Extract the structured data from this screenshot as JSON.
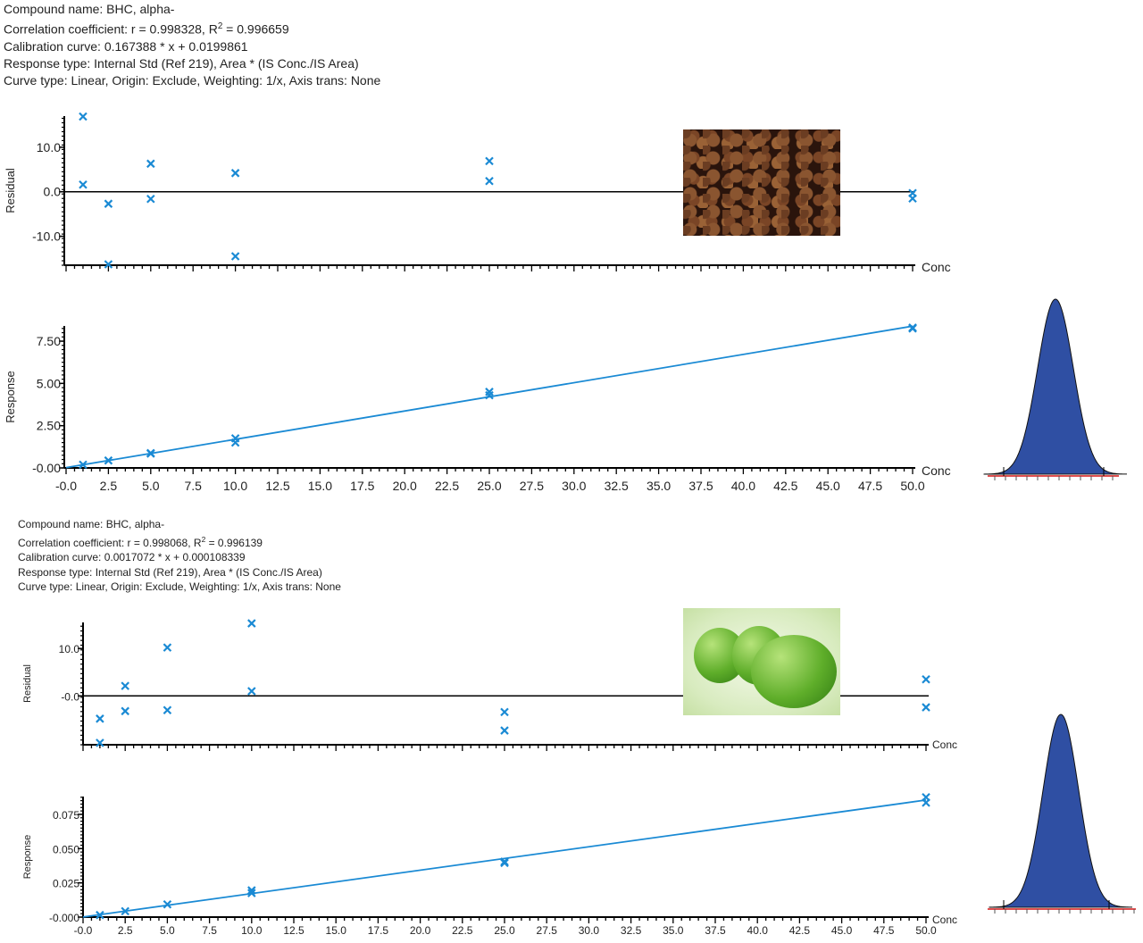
{
  "blocks": [
    {
      "compound": "Compound name: BHC, alpha-",
      "corr": "Correlation coefficient: r = 0.998328, R",
      "corr_sup": "2",
      "corr_val": " = 0.996659",
      "calib": "Calibration curve: 0.167388 * x + 0.0199861",
      "response": "Response type: Internal Std (Ref 219), Area * (IS Conc./IS Area)",
      "curve": "Curve type: Linear, Origin: Exclude, Weighting: 1/x, Axis trans: None"
    },
    {
      "compound": "Compound name: BHC, alpha-",
      "corr": "Correlation coefficient: r = 0.998068, R",
      "corr_sup": "2",
      "corr_val": " = 0.996139",
      "calib": "Calibration curve: 0.0017072 * x + 0.000108339",
      "response": "Response type: Internal Std (Ref 219), Area * (IS Conc./IS Area)",
      "curve": "Curve type: Linear, Origin: Exclude, Weighting: 1/x, Axis trans: None"
    }
  ],
  "colors": {
    "marker": "#1a8ad4",
    "fit": "#1a8ad4",
    "peak": "#2f4fa3",
    "axis": "#000000"
  },
  "chart_data": [
    {
      "type": "scatter",
      "ylabel": "Residual",
      "xlabel": "Conc",
      "xlim": [
        0,
        50
      ],
      "ylim": [
        -16.5,
        17
      ],
      "yticks": [
        10,
        0,
        -10
      ],
      "ytick_labels": [
        "10.0",
        "0.0",
        "-10.0"
      ],
      "x": [
        1,
        1,
        2.5,
        2.5,
        5,
        5,
        10,
        10,
        25,
        25,
        50,
        50
      ],
      "y": [
        16.9,
        1.6,
        -2.7,
        -16.3,
        6.3,
        -1.6,
        4.2,
        -14.5,
        6.9,
        2.4,
        -0.3,
        -1.5
      ]
    },
    {
      "type": "line",
      "ylabel": "Response",
      "xlabel": "Conc",
      "xlim": [
        0,
        50
      ],
      "ylim": [
        0,
        8.4
      ],
      "yticks": [
        7.5,
        5,
        2.5,
        0
      ],
      "ytick_labels": [
        "7.50",
        "5.00",
        "2.50",
        "-0.00"
      ],
      "xticks": [
        "-0.0",
        "2.5",
        "5.0",
        "7.5",
        "10.0",
        "12.5",
        "15.0",
        "17.5",
        "20.0",
        "22.5",
        "25.0",
        "27.5",
        "30.0",
        "32.5",
        "35.0",
        "37.5",
        "40.0",
        "42.5",
        "45.0",
        "47.5",
        "50.0"
      ],
      "fit": {
        "slope": 0.167388,
        "intercept": 0.0199861
      },
      "x": [
        1,
        2.5,
        5,
        5,
        10,
        10,
        25,
        25,
        50,
        50
      ],
      "y": [
        0.19,
        0.44,
        0.88,
        0.85,
        1.75,
        1.5,
        4.5,
        4.3,
        8.3,
        8.25
      ]
    },
    {
      "type": "scatter",
      "ylabel": "Residual",
      "xlabel": "Conc",
      "xlim": [
        0,
        50
      ],
      "ylim": [
        -10.3,
        15.5
      ],
      "yticks": [
        10,
        0
      ],
      "ytick_labels": [
        "10.0",
        "-0.0"
      ],
      "x": [
        1,
        1,
        2.5,
        2.5,
        5,
        5,
        10,
        10,
        25,
        25,
        50,
        50
      ],
      "y": [
        -4.8,
        -9.9,
        2.1,
        -3.2,
        10.2,
        -3,
        15.3,
        1,
        -3.4,
        -7.3,
        3.5,
        -2.4
      ]
    },
    {
      "type": "line",
      "ylabel": "Response",
      "xlabel": "Conc",
      "xlim": [
        0,
        50
      ],
      "ylim": [
        0,
        0.088
      ],
      "yticks": [
        0.075,
        0.05,
        0.025,
        0
      ],
      "ytick_labels": [
        "0.075",
        "0.050",
        "0.025",
        "-0.000"
      ],
      "xticks": [
        "-0.0",
        "2.5",
        "5.0",
        "7.5",
        "10.0",
        "12.5",
        "15.0",
        "17.5",
        "20.0",
        "22.5",
        "25.0",
        "27.5",
        "30.0",
        "32.5",
        "35.0",
        "37.5",
        "40.0",
        "42.5",
        "45.0",
        "47.5",
        "50.0"
      ],
      "fit": {
        "slope": 0.0017072,
        "intercept": 0.000108339
      },
      "x": [
        1,
        2.5,
        5,
        10,
        10,
        25,
        25,
        50,
        50
      ],
      "y": [
        0.0015,
        0.0043,
        0.0093,
        0.0195,
        0.0175,
        0.0405,
        0.0395,
        0.0875,
        0.0835
      ]
    }
  ]
}
